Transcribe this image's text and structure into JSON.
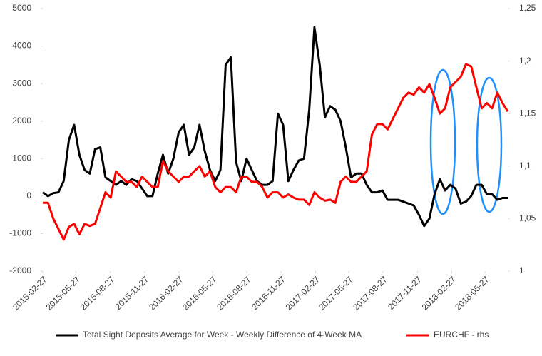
{
  "chart_data": {
    "type": "line",
    "x": [
      "2015-02-27",
      "2015-03-13",
      "2015-03-27",
      "2015-04-10",
      "2015-04-24",
      "2015-05-08",
      "2015-05-22",
      "2015-06-05",
      "2015-06-19",
      "2015-07-03",
      "2015-07-17",
      "2015-07-31",
      "2015-08-14",
      "2015-08-28",
      "2015-09-11",
      "2015-09-25",
      "2015-10-09",
      "2015-10-23",
      "2015-11-06",
      "2015-11-20",
      "2015-12-04",
      "2015-12-18",
      "2016-01-01",
      "2016-01-15",
      "2016-01-29",
      "2016-02-12",
      "2016-02-26",
      "2016-03-11",
      "2016-03-25",
      "2016-04-08",
      "2016-04-22",
      "2016-05-06",
      "2016-05-20",
      "2016-06-03",
      "2016-06-17",
      "2016-07-01",
      "2016-07-15",
      "2016-07-29",
      "2016-08-12",
      "2016-08-26",
      "2016-09-09",
      "2016-09-23",
      "2016-10-07",
      "2016-10-21",
      "2016-11-04",
      "2016-11-18",
      "2016-12-02",
      "2016-12-16",
      "2016-12-30",
      "2017-01-13",
      "2017-01-27",
      "2017-02-10",
      "2017-02-24",
      "2017-03-10",
      "2017-03-24",
      "2017-04-07",
      "2017-04-21",
      "2017-05-05",
      "2017-05-19",
      "2017-06-02",
      "2017-06-16",
      "2017-06-30",
      "2017-07-14",
      "2017-07-28",
      "2017-08-11",
      "2017-08-25",
      "2017-09-08",
      "2017-09-22",
      "2017-10-06",
      "2017-10-20",
      "2017-11-03",
      "2017-11-17",
      "2017-12-01",
      "2017-12-15",
      "2017-12-29",
      "2018-01-12",
      "2018-01-26",
      "2018-02-09",
      "2018-02-23",
      "2018-03-09",
      "2018-03-23",
      "2018-04-06",
      "2018-04-20",
      "2018-05-04",
      "2018-05-18",
      "2018-06-01",
      "2018-06-15",
      "2018-06-29",
      "2018-07-13",
      "2018-07-27"
    ],
    "series": [
      {
        "name": "Total Sight Deposits Average for Week - Weekly Difference of 4-Week MA",
        "color": "#000000",
        "values": [
          100,
          0,
          80,
          100,
          400,
          1500,
          1900,
          1100,
          700,
          600,
          1250,
          1300,
          500,
          400,
          300,
          400,
          300,
          450,
          400,
          200,
          0,
          0,
          600,
          1100,
          600,
          1000,
          1700,
          1900,
          1100,
          1300,
          1900,
          1200,
          700,
          400,
          700,
          3500,
          3700,
          900,
          400,
          1000,
          700,
          400,
          300,
          300,
          400,
          2200,
          1900,
          400,
          700,
          950,
          1000,
          2300,
          4500,
          3500,
          2100,
          2400,
          2300,
          2000,
          1300,
          500,
          600,
          600,
          300,
          100,
          100,
          150,
          -100,
          -100,
          -100,
          -150,
          -200,
          -250,
          -500,
          -800,
          -600,
          50,
          450,
          150,
          300,
          200,
          -200,
          -150,
          0,
          300,
          300,
          50,
          50,
          -100,
          -50,
          -50
        ]
      },
      {
        "name": "EURCHF - rhs",
        "color": "#ff0000",
        "axis": "y2",
        "values": [
          1.065,
          1.065,
          1.05,
          1.04,
          1.03,
          1.042,
          1.045,
          1.035,
          1.045,
          1.043,
          1.045,
          1.06,
          1.075,
          1.07,
          1.095,
          1.09,
          1.085,
          1.085,
          1.08,
          1.09,
          1.085,
          1.08,
          1.08,
          1.105,
          1.095,
          1.09,
          1.085,
          1.09,
          1.09,
          1.095,
          1.1,
          1.09,
          1.095,
          1.08,
          1.075,
          1.08,
          1.08,
          1.075,
          1.09,
          1.09,
          1.085,
          1.085,
          1.08,
          1.07,
          1.075,
          1.075,
          1.07,
          1.073,
          1.07,
          1.068,
          1.068,
          1.063,
          1.075,
          1.07,
          1.067,
          1.068,
          1.065,
          1.085,
          1.09,
          1.085,
          1.085,
          1.09,
          1.095,
          1.13,
          1.14,
          1.14,
          1.135,
          1.145,
          1.155,
          1.165,
          1.17,
          1.168,
          1.175,
          1.17,
          1.178,
          1.165,
          1.15,
          1.155,
          1.175,
          1.18,
          1.185,
          1.197,
          1.195,
          1.175,
          1.155,
          1.16,
          1.155,
          1.17,
          1.16,
          1.152
        ]
      }
    ],
    "xlim": [
      "2015-02-27",
      "2018-07-27"
    ],
    "xticks": [
      "2015-02-27",
      "2015-05-27",
      "2015-08-27",
      "2015-11-27",
      "2016-02-27",
      "2016-05-27",
      "2016-08-27",
      "2016-11-27",
      "2017-02-27",
      "2017-05-27",
      "2017-08-27",
      "2017-11-27",
      "2018-02-27",
      "2018-05-27"
    ],
    "ylim": [
      -2000,
      5000
    ],
    "yticks": [
      -2000,
      -1000,
      0,
      1000,
      2000,
      3000,
      4000,
      5000
    ],
    "y2lim": [
      1,
      1.25
    ],
    "y2ticks": [
      {
        "value": 1,
        "label": "1"
      },
      {
        "value": 1.05,
        "label": "1,05"
      },
      {
        "value": 1.1,
        "label": "1,1"
      },
      {
        "value": 1.15,
        "label": "1,15"
      },
      {
        "value": 1.2,
        "label": "1,2"
      },
      {
        "value": 1.25,
        "label": "1,25"
      }
    ],
    "legend": "bottom"
  }
}
